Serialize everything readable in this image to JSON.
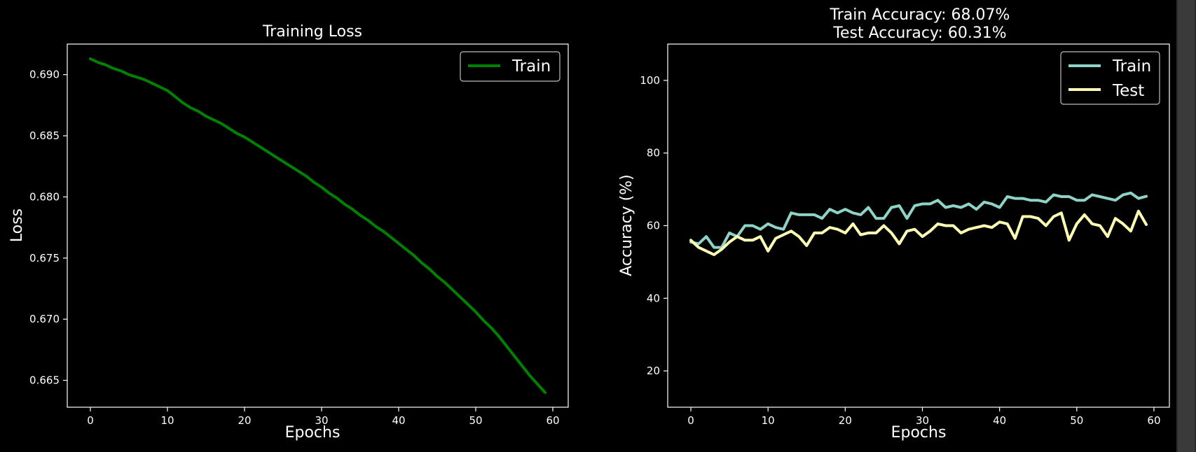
{
  "colors": {
    "background": "#000000",
    "axes": "#ffffff",
    "text": "#ffffff",
    "loss_train": "#008000",
    "acc_train": "#8dd3c7",
    "acc_test": "#ffffb3"
  },
  "chart_data": [
    {
      "type": "line",
      "title": "Training Loss",
      "xlabel": "Epochs",
      "ylabel": "Loss",
      "xlim": [
        -3,
        62
      ],
      "ylim": [
        0.6628,
        0.6925
      ],
      "xticks": [
        0,
        10,
        20,
        30,
        40,
        50,
        60
      ],
      "yticks": [
        0.665,
        0.67,
        0.675,
        0.68,
        0.685,
        0.69
      ],
      "ytick_labels": [
        "0.665",
        "0.670",
        "0.675",
        "0.680",
        "0.685",
        "0.690"
      ],
      "legend": "top-right",
      "grid": false,
      "series": [
        {
          "name": "Train",
          "color": "#008000",
          "x": [
            0,
            1,
            2,
            3,
            4,
            5,
            6,
            7,
            8,
            9,
            10,
            11,
            12,
            13,
            14,
            15,
            16,
            17,
            18,
            19,
            20,
            21,
            22,
            23,
            24,
            25,
            26,
            27,
            28,
            29,
            30,
            31,
            32,
            33,
            34,
            35,
            36,
            37,
            38,
            39,
            40,
            41,
            42,
            43,
            44,
            45,
            46,
            47,
            48,
            49,
            50,
            51,
            52,
            53,
            54,
            55,
            56,
            57,
            58,
            59
          ],
          "values": [
            0.6913,
            0.691,
            0.6908,
            0.6905,
            0.6903,
            0.69,
            0.6898,
            0.6896,
            0.6893,
            0.689,
            0.6887,
            0.6882,
            0.6877,
            0.6873,
            0.687,
            0.6866,
            0.6863,
            0.686,
            0.6856,
            0.6852,
            0.6849,
            0.6845,
            0.6841,
            0.6837,
            0.6833,
            0.6829,
            0.6825,
            0.6821,
            0.6817,
            0.6812,
            0.6808,
            0.6803,
            0.6799,
            0.6794,
            0.679,
            0.6785,
            0.6781,
            0.6776,
            0.6772,
            0.6767,
            0.6762,
            0.6757,
            0.6752,
            0.6746,
            0.6741,
            0.6735,
            0.673,
            0.6724,
            0.6718,
            0.6712,
            0.6706,
            0.6699,
            0.6693,
            0.6686,
            0.6678,
            0.667,
            0.6662,
            0.6654,
            0.6647,
            0.664
          ]
        }
      ]
    },
    {
      "type": "line",
      "title": "Train Accuracy: 68.07%\nTest Accuracy: 60.31%",
      "xlabel": "Epochs",
      "ylabel": "Accuracy (%)",
      "xlim": [
        -3,
        62
      ],
      "ylim": [
        10,
        110
      ],
      "xticks": [
        0,
        10,
        20,
        30,
        40,
        50,
        60
      ],
      "yticks": [
        20,
        40,
        60,
        80,
        100
      ],
      "ytick_labels": [
        "20",
        "40",
        "60",
        "80",
        "100"
      ],
      "legend": "top-right",
      "grid": false,
      "series": [
        {
          "name": "Train",
          "color": "#8dd3c7",
          "x": [
            0,
            1,
            2,
            3,
            4,
            5,
            6,
            7,
            8,
            9,
            10,
            11,
            12,
            13,
            14,
            15,
            16,
            17,
            18,
            19,
            20,
            21,
            22,
            23,
            24,
            25,
            26,
            27,
            28,
            29,
            30,
            31,
            32,
            33,
            34,
            35,
            36,
            37,
            38,
            39,
            40,
            41,
            42,
            43,
            44,
            45,
            46,
            47,
            48,
            49,
            50,
            51,
            52,
            53,
            54,
            55,
            56,
            57,
            58,
            59
          ],
          "values": [
            55.5,
            55.0,
            57.0,
            54.0,
            54.0,
            58.0,
            57.0,
            60.0,
            60.0,
            59.0,
            60.5,
            59.5,
            59.0,
            63.5,
            63.0,
            63.0,
            63.0,
            62.0,
            64.5,
            63.5,
            64.5,
            63.5,
            63.0,
            65.0,
            62.0,
            62.0,
            65.0,
            65.5,
            62.0,
            65.5,
            66.0,
            66.0,
            67.0,
            65.0,
            65.5,
            65.0,
            66.0,
            64.5,
            66.5,
            66.0,
            65.0,
            68.0,
            67.5,
            67.5,
            67.0,
            67.0,
            66.5,
            68.5,
            68.0,
            68.0,
            67.0,
            67.0,
            68.5,
            68.0,
            67.5,
            67.0,
            68.5,
            69.0,
            67.5,
            68.07
          ]
        },
        {
          "name": "Test",
          "color": "#ffffb3",
          "x": [
            0,
            1,
            2,
            3,
            4,
            5,
            6,
            7,
            8,
            9,
            10,
            11,
            12,
            13,
            14,
            15,
            16,
            17,
            18,
            19,
            20,
            21,
            22,
            23,
            24,
            25,
            26,
            27,
            28,
            29,
            30,
            31,
            32,
            33,
            34,
            35,
            36,
            37,
            38,
            39,
            40,
            41,
            42,
            43,
            44,
            45,
            46,
            47,
            48,
            49,
            50,
            51,
            52,
            53,
            54,
            55,
            56,
            57,
            58,
            59
          ],
          "values": [
            56.0,
            54.0,
            53.0,
            52.0,
            53.5,
            55.5,
            57.0,
            56.0,
            56.0,
            57.0,
            53.0,
            56.5,
            57.5,
            58.5,
            57.0,
            54.5,
            58.0,
            58.0,
            59.5,
            59.0,
            58.0,
            60.5,
            57.5,
            58.0,
            58.0,
            60.0,
            58.0,
            55.0,
            58.5,
            59.0,
            57.0,
            58.5,
            60.5,
            60.0,
            60.0,
            58.0,
            59.0,
            59.5,
            60.0,
            59.5,
            61.0,
            60.5,
            56.5,
            62.5,
            62.5,
            62.0,
            60.0,
            62.5,
            63.5,
            56.0,
            60.5,
            63.0,
            60.5,
            60.0,
            57.0,
            62.0,
            60.5,
            58.5,
            64.0,
            60.31
          ]
        }
      ]
    }
  ]
}
